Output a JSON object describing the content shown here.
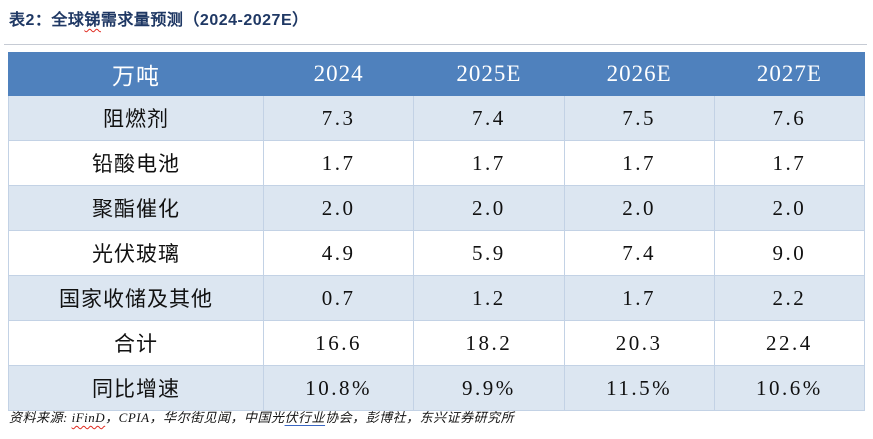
{
  "page": {
    "title": {
      "part1": "表2：全球",
      "misspelled_word": "锑",
      "part2": "需求量预测（2024-2027E）"
    }
  },
  "table": {
    "corner_header": "万吨",
    "year_headers": [
      "2024",
      "2025E",
      "2026E",
      "2027E"
    ],
    "rows": [
      {
        "label": "阻燃剂",
        "values": [
          "7.3",
          "7.4",
          "7.5",
          "7.6"
        ]
      },
      {
        "label": "铅酸电池",
        "values": [
          "1.7",
          "1.7",
          "1.7",
          "1.7"
        ]
      },
      {
        "label": "聚酯催化",
        "values": [
          "2.0",
          "2.0",
          "2.0",
          "2.0"
        ]
      },
      {
        "label": "光伏玻璃",
        "values": [
          "4.9",
          "5.9",
          "7.4",
          "9.0"
        ]
      },
      {
        "label": "国家收储及其他",
        "values": [
          "0.7",
          "1.2",
          "1.7",
          "2.2"
        ]
      },
      {
        "label": "合计",
        "values": [
          "16.6",
          "18.2",
          "20.3",
          "22.4"
        ]
      },
      {
        "label": "同比增速",
        "values": [
          "10.8%",
          "9.9%",
          "11.5%",
          "10.6%"
        ]
      }
    ]
  },
  "source_note": {
    "label": "资料来源: ",
    "seg_ifind": "iFinD",
    "seg_mid": "，CPIA，华尔街见闻，中国光",
    "seg_underlined": "伏行业",
    "seg_end": "协会，彭博社，东兴证券研究所"
  },
  "colors": {
    "title_text": "#1F3864",
    "header_bg": "#4F81BD",
    "header_text": "#FFFFFF",
    "stripe_bg": "#DCE6F1",
    "cell_border": "#C3D2E5",
    "spellcheck_red": "#E02B20",
    "hyperlink_underline_blue": "#3A66C2"
  },
  "chart_data": {
    "type": "table",
    "title": "全球锑需求量预测（2024-2027E）",
    "unit": "万吨",
    "columns": [
      "2024",
      "2025E",
      "2026E",
      "2027E"
    ],
    "rows": [
      {
        "label": "阻燃剂",
        "values": [
          7.3,
          7.4,
          7.5,
          7.6
        ]
      },
      {
        "label": "铅酸电池",
        "values": [
          1.7,
          1.7,
          1.7,
          1.7
        ]
      },
      {
        "label": "聚酯催化",
        "values": [
          2.0,
          2.0,
          2.0,
          2.0
        ]
      },
      {
        "label": "光伏玻璃",
        "values": [
          4.9,
          5.9,
          7.4,
          9.0
        ]
      },
      {
        "label": "国家收储及其他",
        "values": [
          0.7,
          1.2,
          1.7,
          2.2
        ]
      },
      {
        "label": "合计",
        "values": [
          16.6,
          18.2,
          20.3,
          22.4
        ]
      },
      {
        "label": "同比增速",
        "values": [
          "10.8%",
          "9.9%",
          "11.5%",
          "10.6%"
        ]
      }
    ]
  }
}
